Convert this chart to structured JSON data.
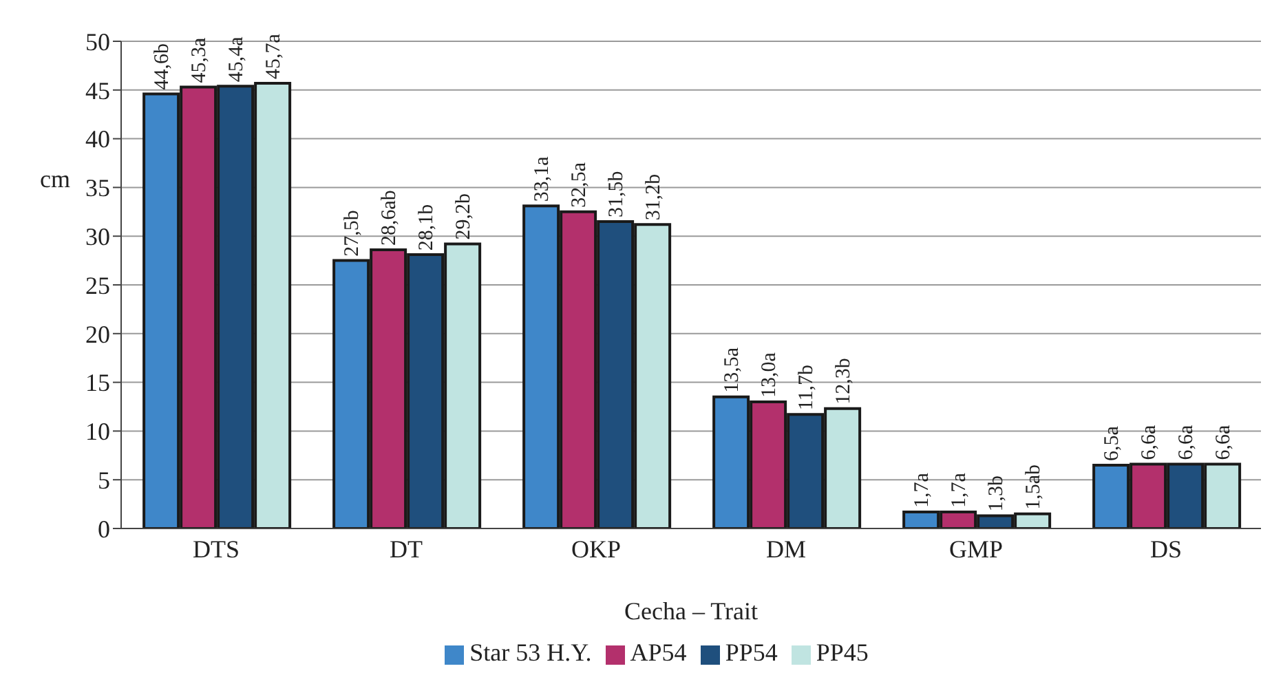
{
  "chart_data": {
    "type": "bar",
    "xlabel": "Cecha – Trait",
    "ylabel": "cm",
    "categories": [
      "DTS",
      "DT",
      "OKP",
      "DM",
      "GMP",
      "DS"
    ],
    "series": [
      {
        "name": "Star 53 H.Y.",
        "color": "#3f87c9",
        "values": [
          44.6,
          27.5,
          33.1,
          13.5,
          1.7,
          6.5
        ],
        "value_labels": [
          "44,6b",
          "27,5b",
          "33,1a",
          "13,5a",
          "1,7a",
          "6,5a"
        ]
      },
      {
        "name": "AP54",
        "color": "#b3306c",
        "values": [
          45.3,
          28.6,
          32.5,
          13.0,
          1.7,
          6.6
        ],
        "value_labels": [
          "45,3a",
          "28,6ab",
          "32,5a",
          "13,0a",
          "1,7a",
          "6,6a"
        ]
      },
      {
        "name": "PP54",
        "color": "#1f4f7d",
        "values": [
          45.4,
          28.1,
          31.5,
          11.7,
          1.3,
          6.6
        ],
        "value_labels": [
          "45,4a",
          "28,1b",
          "31,5b",
          "11,7b",
          "1,3b",
          "6,6a"
        ]
      },
      {
        "name": "PP45",
        "color": "#c0e4e1",
        "values": [
          45.7,
          29.2,
          31.2,
          12.3,
          1.5,
          6.6
        ],
        "value_labels": [
          "45,7a",
          "29,2b",
          "31,2b",
          "12,3b",
          "1,5ab",
          "6,6a"
        ]
      }
    ],
    "ylim": [
      0,
      50
    ],
    "yticks": [
      0,
      5,
      10,
      15,
      20,
      25,
      30,
      35,
      40,
      45,
      50
    ],
    "grid": "y",
    "legend": "bottom"
  }
}
